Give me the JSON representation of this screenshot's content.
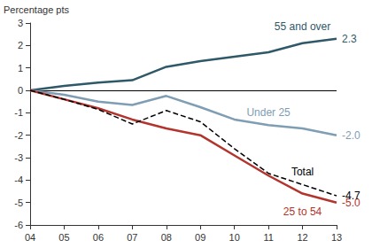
{
  "chart_data": {
    "type": "line",
    "y_label": "Percentage pts",
    "categories": [
      "04",
      "05",
      "06",
      "07",
      "08",
      "09",
      "10",
      "11",
      "12",
      "13"
    ],
    "series": [
      {
        "name": "55 and over",
        "color": "#2f5868",
        "line_style": "solid",
        "values": [
          0,
          0.2,
          0.35,
          0.45,
          1.05,
          1.3,
          1.5,
          1.7,
          2.1,
          2.3
        ],
        "value_labels": [
          null,
          null,
          null,
          null,
          null,
          null,
          null,
          null,
          null,
          "2.3"
        ]
      },
      {
        "name": "Under 25",
        "color": "#7f9db3",
        "line_style": "solid",
        "values": [
          0,
          -0.2,
          -0.5,
          -0.65,
          -0.25,
          -0.75,
          -1.3,
          -1.55,
          -1.7,
          -2.0
        ],
        "value_labels": [
          null,
          null,
          null,
          null,
          null,
          null,
          null,
          null,
          null,
          "-2.0"
        ]
      },
      {
        "name": "Total",
        "color": "#000000",
        "line_style": "dashed",
        "values": [
          0,
          -0.4,
          -0.85,
          -1.5,
          -0.9,
          -1.4,
          -2.6,
          -3.7,
          -4.2,
          -4.7
        ],
        "value_labels": [
          null,
          null,
          null,
          null,
          null,
          null,
          null,
          null,
          null,
          "-4.7"
        ]
      },
      {
        "name": "25 to 54",
        "color": "#b3342c",
        "line_style": "solid",
        "values": [
          0,
          -0.4,
          -0.8,
          -1.3,
          -1.7,
          -2.0,
          -2.9,
          -3.8,
          -4.6,
          -5.0
        ],
        "value_labels": [
          null,
          null,
          null,
          null,
          null,
          null,
          null,
          null,
          null,
          "-5.0"
        ]
      }
    ],
    "annotations": [
      {
        "text": "55 and over",
        "x": "12",
        "y": 2.85,
        "color": "#2f5868"
      },
      {
        "text": "Under 25",
        "x": "11",
        "y": -1.0,
        "color": "#7f9db3"
      },
      {
        "text": "Total",
        "x": "12",
        "y": -3.65,
        "color": "#000000"
      },
      {
        "text": "25 to 54",
        "x": "12",
        "y": -5.4,
        "color": "#b3342c"
      }
    ],
    "ylim": [
      -6,
      3
    ],
    "yticks": [
      -6,
      -5,
      -4,
      -3,
      -2,
      -1,
      0,
      1,
      2,
      3
    ],
    "grid": false,
    "data_labels": true
  }
}
